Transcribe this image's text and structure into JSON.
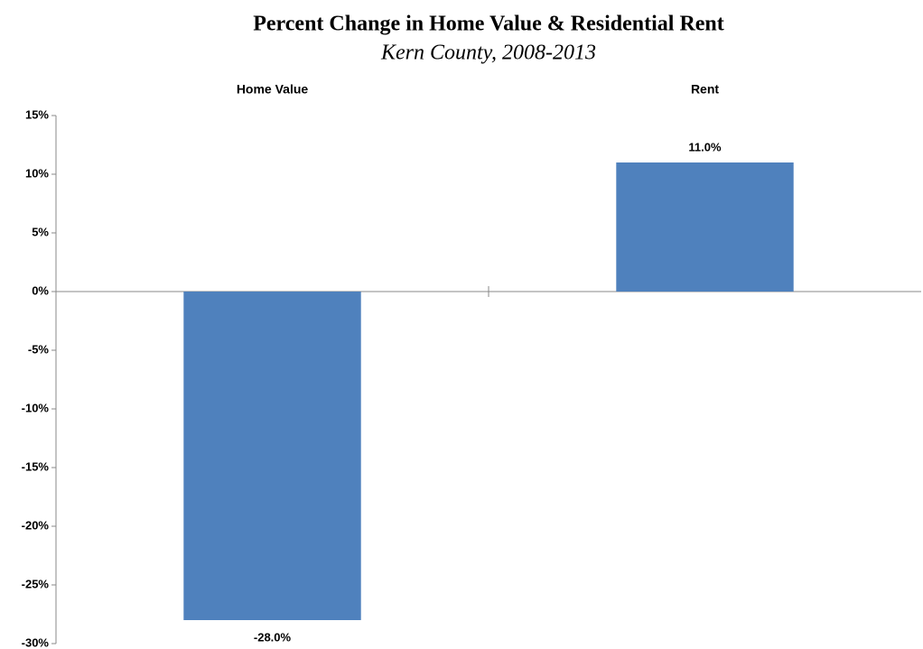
{
  "chart_data": {
    "type": "bar",
    "title": "Percent Change in Home Value & Residential Rent",
    "subtitle": "Kern County, 2008-2013",
    "categories": [
      "Home Value",
      "Rent"
    ],
    "values": [
      -28.0,
      11.0
    ],
    "value_labels": [
      "-28.0%",
      "11.0%"
    ],
    "color": "#4f81bd",
    "ylim": [
      -30,
      15
    ],
    "yticks": [
      {
        "value": -30,
        "label": "-30%"
      },
      {
        "value": -25,
        "label": "-25%"
      },
      {
        "value": -20,
        "label": "-20%"
      },
      {
        "value": -15,
        "label": "-15%"
      },
      {
        "value": -10,
        "label": "-10%"
      },
      {
        "value": -5,
        "label": "-5%"
      },
      {
        "value": 0,
        "label": "0%"
      },
      {
        "value": 5,
        "label": "5%"
      },
      {
        "value": 10,
        "label": "10%"
      },
      {
        "value": 15,
        "label": "15%"
      }
    ],
    "grid": false
  }
}
